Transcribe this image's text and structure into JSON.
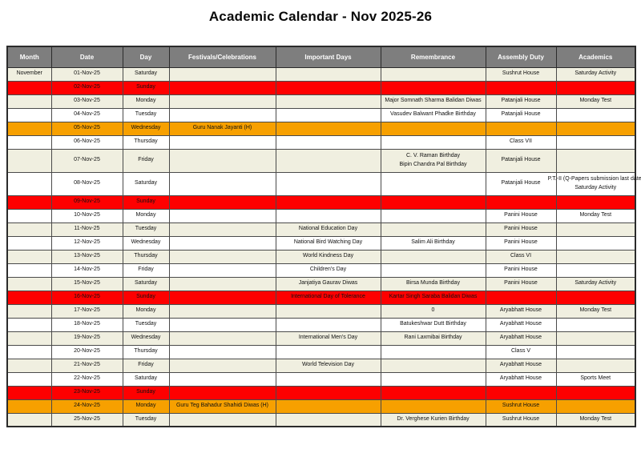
{
  "title": "Academic Calendar - Nov 2025-26",
  "colors": {
    "header_bg": "#7E7E7E",
    "header_text": "#FFFFFF",
    "sunday_row": "#FE0000",
    "holiday_row": "#F7A000",
    "alt_row": "#F0EFE0",
    "plain_row": "#FFFFFF"
  },
  "table": {
    "columns": [
      {
        "key": "month",
        "label": "Month"
      },
      {
        "key": "date",
        "label": "Date"
      },
      {
        "key": "day",
        "label": "Day"
      },
      {
        "key": "festivals",
        "label": "Festivals/Celebrations"
      },
      {
        "key": "important",
        "label": "Important Days"
      },
      {
        "key": "remembrance",
        "label": "Remembrance"
      },
      {
        "key": "assembly",
        "label": "Assembly Duty"
      },
      {
        "key": "academics",
        "label": "Academics"
      }
    ],
    "rows": [
      {
        "type": "alt",
        "tall": false,
        "month": "November",
        "date": "01-Nov-25",
        "day": "Saturday",
        "festivals": "",
        "important": "",
        "remembrance": "",
        "assembly": "Sushrut House",
        "academics": "Saturday Activity"
      },
      {
        "type": "sunday",
        "tall": false,
        "month": "",
        "date": "02-Nov-25",
        "day": "Sunday",
        "festivals": "",
        "important": "",
        "remembrance": "",
        "assembly": "",
        "academics": ""
      },
      {
        "type": "alt",
        "tall": false,
        "month": "",
        "date": "03-Nov-25",
        "day": "Monday",
        "festivals": "",
        "important": "",
        "remembrance": "Major Somnath Sharma Balidan Diwas",
        "assembly": "Patanjali House",
        "academics": "Monday Test"
      },
      {
        "type": "plain",
        "tall": false,
        "month": "",
        "date": "04-Nov-25",
        "day": "Tuesday",
        "festivals": "",
        "important": "",
        "remembrance": "Vasudev Balwant Phadke Birthday",
        "assembly": "Patanjali House",
        "academics": ""
      },
      {
        "type": "holiday",
        "tall": false,
        "month": "",
        "date": "05-Nov-25",
        "day": "Wednesday",
        "festivals": "Guru Nanak Jayanti (H)",
        "important": "",
        "remembrance": "",
        "assembly": "",
        "academics": ""
      },
      {
        "type": "plain",
        "tall": false,
        "month": "",
        "date": "06-Nov-25",
        "day": "Thursday",
        "festivals": "",
        "important": "",
        "remembrance": "",
        "assembly": "Class VII",
        "academics": ""
      },
      {
        "type": "alt",
        "tall": true,
        "month": "",
        "date": "07-Nov-25",
        "day": "Friday",
        "festivals": "",
        "important": "",
        "remembrance": "C. V. Raman Birthday\nBipin Chandra Pal Birthday",
        "assembly": "Patanjali House",
        "academics": ""
      },
      {
        "type": "plain",
        "tall": true,
        "month": "",
        "date": "08-Nov-25",
        "day": "Saturday",
        "festivals": "",
        "important": "",
        "remembrance": "",
        "assembly": "Patanjali House",
        "academics": "P.T.-II (Q-Papers submission last date)\nSaturday Activity"
      },
      {
        "type": "sunday",
        "tall": false,
        "month": "",
        "date": "09-Nov-25",
        "day": "Sunday",
        "festivals": "",
        "important": "",
        "remembrance": "",
        "assembly": "",
        "academics": ""
      },
      {
        "type": "plain",
        "tall": false,
        "month": "",
        "date": "10-Nov-25",
        "day": "Monday",
        "festivals": "",
        "important": "",
        "remembrance": "",
        "assembly": "Panini House",
        "academics": "Monday Test"
      },
      {
        "type": "alt",
        "tall": false,
        "month": "",
        "date": "11-Nov-25",
        "day": "Tuesday",
        "festivals": "",
        "important": "National Education Day",
        "remembrance": "",
        "assembly": "Panini House",
        "academics": ""
      },
      {
        "type": "plain",
        "tall": false,
        "month": "",
        "date": "12-Nov-25",
        "day": "Wednesday",
        "festivals": "",
        "important": "National Bird Watching Day",
        "remembrance": "Salim Ali Birthday",
        "assembly": "Panini House",
        "academics": ""
      },
      {
        "type": "alt",
        "tall": false,
        "month": "",
        "date": "13-Nov-25",
        "day": "Thursday",
        "festivals": "",
        "important": "World Kindness Day",
        "remembrance": "",
        "assembly": "Class VI",
        "academics": ""
      },
      {
        "type": "plain",
        "tall": false,
        "month": "",
        "date": "14-Nov-25",
        "day": "Friday",
        "festivals": "",
        "important": "Children's Day",
        "remembrance": "",
        "assembly": "Panini House",
        "academics": ""
      },
      {
        "type": "alt",
        "tall": false,
        "month": "",
        "date": "15-Nov-25",
        "day": "Saturday",
        "festivals": "",
        "important": "Janjatiya Gaurav Diwas",
        "remembrance": "Birsa Munda Birthday",
        "assembly": "Panini House",
        "academics": "Saturday Activity"
      },
      {
        "type": "sunday",
        "tall": false,
        "month": "",
        "date": "16-Nov-25",
        "day": "Sunday",
        "festivals": "",
        "important": "International Day of Tolerance",
        "remembrance": "Kartar Singh Saraba Balidan Diwas",
        "assembly": "",
        "academics": ""
      },
      {
        "type": "alt",
        "tall": false,
        "month": "",
        "date": "17-Nov-25",
        "day": "Monday",
        "festivals": "",
        "important": "",
        "remembrance": "0",
        "assembly": "Aryabhatt House",
        "academics": "Monday Test"
      },
      {
        "type": "plain",
        "tall": false,
        "month": "",
        "date": "18-Nov-25",
        "day": "Tuesday",
        "festivals": "",
        "important": "",
        "remembrance": "Batukeshwar Dutt Birthday",
        "assembly": "Aryabhatt House",
        "academics": ""
      },
      {
        "type": "alt",
        "tall": false,
        "month": "",
        "date": "19-Nov-25",
        "day": "Wednesday",
        "festivals": "",
        "important": "International Men's Day",
        "remembrance": "Rani Laxmibai Birthday",
        "assembly": "Aryabhatt House",
        "academics": ""
      },
      {
        "type": "plain",
        "tall": false,
        "month": "",
        "date": "20-Nov-25",
        "day": "Thursday",
        "festivals": "",
        "important": "",
        "remembrance": "",
        "assembly": "Class V",
        "academics": ""
      },
      {
        "type": "alt",
        "tall": false,
        "month": "",
        "date": "21-Nov-25",
        "day": "Friday",
        "festivals": "",
        "important": "World Television Day",
        "remembrance": "",
        "assembly": "Aryabhatt House",
        "academics": ""
      },
      {
        "type": "plain",
        "tall": false,
        "month": "",
        "date": "22-Nov-25",
        "day": "Saturday",
        "festivals": "",
        "important": "",
        "remembrance": "",
        "assembly": "Aryabhatt House",
        "academics": "Sports Meet"
      },
      {
        "type": "sunday",
        "tall": false,
        "month": "",
        "date": "23-Nov-25",
        "day": "Sunday",
        "festivals": "",
        "important": "",
        "remembrance": "",
        "assembly": "",
        "academics": ""
      },
      {
        "type": "holiday",
        "tall": false,
        "month": "",
        "date": "24-Nov-25",
        "day": "Monday",
        "festivals": "Guru Teg Bahadur Shahidi Diwas (H)",
        "important": "",
        "remembrance": "",
        "assembly": "Sushrut House",
        "academics": ""
      },
      {
        "type": "alt",
        "tall": false,
        "month": "",
        "date": "25-Nov-25",
        "day": "Tuesday",
        "festivals": "",
        "important": "",
        "remembrance": "Dr. Verghese Kurien Birthday",
        "assembly": "Sushrut House",
        "academics": "Monday Test"
      }
    ]
  }
}
